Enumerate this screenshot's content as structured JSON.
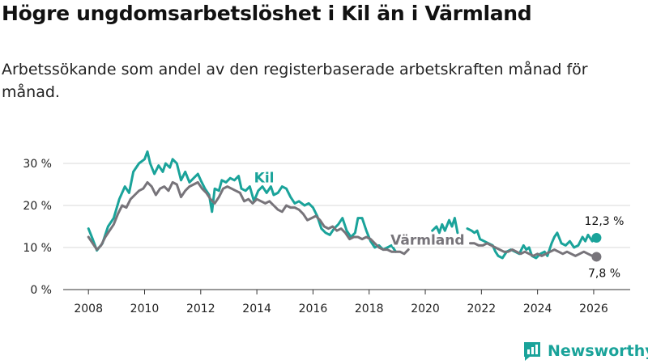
{
  "header": {
    "title": "Högre ungdomsarbetslöshet i Kil än i Värmland",
    "subtitle": "Arbetssökande som andel av den registerbaserade arbetskraften månad för månad."
  },
  "brand": {
    "name": "Newsworthy"
  },
  "colors": {
    "kil": "#1aa39a",
    "varmland": "#77747a",
    "grid": "#d9d9d9",
    "axis": "#333333"
  },
  "chart_data": {
    "type": "line",
    "title": "Högre ungdomsarbetslöshet i Kil än i Värmland",
    "subtitle": "Arbetssökande som andel av den registerbaserade arbetskraften månad för månad.",
    "xlabel": "",
    "ylabel": "",
    "xlim": [
      2007.1,
      2027.3
    ],
    "ylim": [
      0,
      30
    ],
    "y_ticks": [
      0,
      10,
      20,
      30
    ],
    "y_tick_labels": [
      "0 %",
      "10 %",
      "20 %",
      "30 %"
    ],
    "x_ticks": [
      2008,
      2010,
      2012,
      2014,
      2016,
      2018,
      2020,
      2022,
      2024,
      2026
    ],
    "x_tick_labels": [
      "2008",
      "2010",
      "2012",
      "2014",
      "2016",
      "2018",
      "2020",
      "2022",
      "2024",
      "2026"
    ],
    "grid": true,
    "series": [
      {
        "name": "Kil",
        "label": "Kil",
        "end_label": "12,3 %",
        "segments": [
          [
            [
              2008.0,
              14.5
            ],
            [
              2008.15,
              12.0
            ],
            [
              2008.3,
              9.3
            ],
            [
              2008.5,
              11.0
            ],
            [
              2008.7,
              15.0
            ],
            [
              2008.9,
              17.0
            ],
            [
              2009.1,
              21.5
            ],
            [
              2009.3,
              24.5
            ],
            [
              2009.45,
              23.0
            ],
            [
              2009.6,
              28.0
            ],
            [
              2009.8,
              30.0
            ],
            [
              2010.0,
              31.0
            ],
            [
              2010.1,
              32.8
            ],
            [
              2010.2,
              30.0
            ],
            [
              2010.35,
              27.5
            ],
            [
              2010.5,
              29.5
            ],
            [
              2010.65,
              28.0
            ],
            [
              2010.75,
              30.0
            ],
            [
              2010.9,
              29.0
            ],
            [
              2011.0,
              31.0
            ],
            [
              2011.15,
              30.0
            ],
            [
              2011.3,
              26.0
            ],
            [
              2011.45,
              28.0
            ],
            [
              2011.6,
              25.5
            ],
            [
              2011.75,
              26.5
            ],
            [
              2011.9,
              27.5
            ],
            [
              2012.0,
              26.0
            ],
            [
              2012.15,
              24.0
            ],
            [
              2012.3,
              22.5
            ],
            [
              2012.4,
              18.5
            ],
            [
              2012.5,
              24.0
            ],
            [
              2012.65,
              23.5
            ],
            [
              2012.75,
              26.0
            ],
            [
              2012.9,
              25.5
            ],
            [
              2013.05,
              26.5
            ],
            [
              2013.2,
              26.0
            ],
            [
              2013.35,
              27.0
            ],
            [
              2013.45,
              24.0
            ],
            [
              2013.6,
              23.5
            ],
            [
              2013.75,
              24.5
            ],
            [
              2013.9,
              21.0
            ],
            [
              2014.05,
              23.5
            ],
            [
              2014.2,
              24.5
            ],
            [
              2014.35,
              23.0
            ],
            [
              2014.5,
              24.5
            ],
            [
              2014.6,
              22.5
            ],
            [
              2014.75,
              23.0
            ],
            [
              2014.9,
              24.5
            ],
            [
              2015.05,
              24.0
            ],
            [
              2015.2,
              22.0
            ],
            [
              2015.35,
              20.5
            ],
            [
              2015.5,
              21.0
            ],
            [
              2015.7,
              20.0
            ],
            [
              2015.85,
              20.5
            ],
            [
              2016.0,
              19.5
            ],
            [
              2016.15,
              17.5
            ],
            [
              2016.3,
              14.5
            ],
            [
              2016.45,
              13.5
            ],
            [
              2016.6,
              13.0
            ],
            [
              2016.75,
              14.5
            ],
            [
              2016.9,
              15.5
            ],
            [
              2017.05,
              17.0
            ],
            [
              2017.2,
              14.0
            ],
            [
              2017.35,
              12.5
            ],
            [
              2017.5,
              13.5
            ],
            [
              2017.6,
              17.0
            ],
            [
              2017.75,
              17.0
            ],
            [
              2017.9,
              14.0
            ],
            [
              2018.05,
              11.5
            ],
            [
              2018.2,
              10.0
            ],
            [
              2018.35,
              10.5
            ],
            [
              2018.5,
              9.5
            ],
            [
              2018.65,
              10.0
            ],
            [
              2018.8,
              10.5
            ],
            [
              2018.95,
              9.0
            ]
          ],
          [
            [
              2020.25,
              14.0
            ],
            [
              2020.4,
              15.0
            ],
            [
              2020.5,
              13.5
            ],
            [
              2020.6,
              15.5
            ],
            [
              2020.7,
              14.0
            ],
            [
              2020.85,
              16.5
            ],
            [
              2020.95,
              15.0
            ],
            [
              2021.05,
              17.0
            ],
            [
              2021.15,
              13.5
            ]
          ],
          [
            [
              2021.5,
              14.5
            ],
            [
              2021.65,
              14.0
            ],
            [
              2021.75,
              13.5
            ],
            [
              2021.85,
              14.0
            ],
            [
              2021.95,
              12.0
            ],
            [
              2022.1,
              11.5
            ],
            [
              2022.25,
              11.0
            ],
            [
              2022.4,
              10.5
            ],
            [
              2022.5,
              9.0
            ],
            [
              2022.6,
              8.0
            ],
            [
              2022.75,
              7.5
            ],
            [
              2022.9,
              9.0
            ],
            [
              2023.05,
              9.5
            ],
            [
              2023.2,
              9.0
            ],
            [
              2023.35,
              8.5
            ],
            [
              2023.5,
              10.5
            ],
            [
              2023.6,
              9.5
            ],
            [
              2023.7,
              10.0
            ],
            [
              2023.8,
              8.0
            ],
            [
              2023.95,
              7.5
            ],
            [
              2024.1,
              8.5
            ],
            [
              2024.25,
              9.0
            ],
            [
              2024.35,
              8.0
            ],
            [
              2024.5,
              11.0
            ],
            [
              2024.6,
              12.5
            ],
            [
              2024.7,
              13.5
            ],
            [
              2024.85,
              11.0
            ],
            [
              2025.0,
              10.5
            ],
            [
              2025.15,
              11.5
            ],
            [
              2025.3,
              10.0
            ],
            [
              2025.45,
              10.5
            ],
            [
              2025.6,
              12.5
            ],
            [
              2025.7,
              11.5
            ],
            [
              2025.8,
              13.0
            ],
            [
              2025.95,
              11.5
            ],
            [
              2026.1,
              12.3
            ]
          ]
        ]
      },
      {
        "name": "Värmland",
        "label": "Värmland",
        "end_label": "7,8 %",
        "segments": [
          [
            [
              2008.0,
              12.5
            ],
            [
              2008.15,
              11.0
            ],
            [
              2008.3,
              9.5
            ],
            [
              2008.45,
              10.5
            ],
            [
              2008.6,
              12.5
            ],
            [
              2008.75,
              14.0
            ],
            [
              2008.9,
              15.5
            ],
            [
              2009.05,
              18.0
            ],
            [
              2009.2,
              20.0
            ],
            [
              2009.35,
              19.5
            ],
            [
              2009.5,
              21.5
            ],
            [
              2009.65,
              22.5
            ],
            [
              2009.8,
              23.5
            ],
            [
              2009.95,
              24.0
            ],
            [
              2010.1,
              25.5
            ],
            [
              2010.25,
              24.5
            ],
            [
              2010.4,
              22.5
            ],
            [
              2010.55,
              24.0
            ],
            [
              2010.7,
              24.5
            ],
            [
              2010.85,
              23.5
            ],
            [
              2011.0,
              25.5
            ],
            [
              2011.15,
              25.0
            ],
            [
              2011.3,
              22.0
            ],
            [
              2011.45,
              23.5
            ],
            [
              2011.6,
              24.5
            ],
            [
              2011.75,
              25.0
            ],
            [
              2011.9,
              25.5
            ],
            [
              2012.05,
              24.0
            ],
            [
              2012.2,
              23.0
            ],
            [
              2012.35,
              21.5
            ],
            [
              2012.5,
              20.5
            ],
            [
              2012.65,
              22.0
            ],
            [
              2012.8,
              24.0
            ],
            [
              2012.95,
              24.5
            ],
            [
              2013.1,
              24.0
            ],
            [
              2013.25,
              23.5
            ],
            [
              2013.4,
              23.0
            ],
            [
              2013.55,
              21.0
            ],
            [
              2013.7,
              21.5
            ],
            [
              2013.85,
              20.5
            ],
            [
              2014.0,
              21.5
            ],
            [
              2014.15,
              21.0
            ],
            [
              2014.3,
              20.5
            ],
            [
              2014.45,
              21.0
            ],
            [
              2014.6,
              20.0
            ],
            [
              2014.75,
              19.0
            ],
            [
              2014.9,
              18.5
            ],
            [
              2015.05,
              20.0
            ],
            [
              2015.2,
              19.5
            ],
            [
              2015.35,
              19.5
            ],
            [
              2015.5,
              19.0
            ],
            [
              2015.65,
              18.0
            ],
            [
              2015.8,
              16.5
            ],
            [
              2015.95,
              17.0
            ],
            [
              2016.1,
              17.5
            ],
            [
              2016.25,
              16.5
            ],
            [
              2016.4,
              15.0
            ],
            [
              2016.55,
              14.5
            ],
            [
              2016.7,
              15.0
            ],
            [
              2016.85,
              14.0
            ],
            [
              2017.0,
              14.5
            ],
            [
              2017.15,
              13.5
            ],
            [
              2017.3,
              12.0
            ],
            [
              2017.45,
              12.5
            ],
            [
              2017.6,
              12.5
            ],
            [
              2017.75,
              12.0
            ],
            [
              2017.9,
              12.5
            ],
            [
              2018.05,
              12.0
            ],
            [
              2018.2,
              11.0
            ],
            [
              2018.35,
              10.0
            ],
            [
              2018.5,
              9.5
            ],
            [
              2018.65,
              9.5
            ],
            [
              2018.8,
              9.0
            ],
            [
              2018.95,
              9.0
            ],
            [
              2019.1,
              9.0
            ],
            [
              2019.25,
              8.5
            ],
            [
              2019.4,
              9.5
            ]
          ],
          [
            [
              2021.6,
              11.0
            ],
            [
              2021.75,
              11.0
            ],
            [
              2021.9,
              10.5
            ],
            [
              2022.05,
              10.5
            ],
            [
              2022.2,
              11.0
            ],
            [
              2022.35,
              10.5
            ],
            [
              2022.5,
              10.0
            ],
            [
              2022.65,
              9.5
            ],
            [
              2022.8,
              9.0
            ],
            [
              2022.95,
              9.0
            ],
            [
              2023.1,
              9.5
            ],
            [
              2023.25,
              9.0
            ],
            [
              2023.4,
              8.5
            ],
            [
              2023.55,
              9.0
            ],
            [
              2023.7,
              8.5
            ],
            [
              2023.85,
              8.0
            ],
            [
              2024.0,
              8.5
            ],
            [
              2024.15,
              8.0
            ],
            [
              2024.3,
              8.5
            ],
            [
              2024.45,
              9.0
            ],
            [
              2024.6,
              9.5
            ],
            [
              2024.75,
              9.0
            ],
            [
              2024.9,
              8.5
            ],
            [
              2025.05,
              9.0
            ],
            [
              2025.2,
              8.5
            ],
            [
              2025.35,
              8.0
            ],
            [
              2025.5,
              8.5
            ],
            [
              2025.65,
              9.0
            ],
            [
              2025.8,
              8.5
            ],
            [
              2025.95,
              8.0
            ],
            [
              2026.1,
              7.8
            ]
          ]
        ]
      }
    ]
  }
}
